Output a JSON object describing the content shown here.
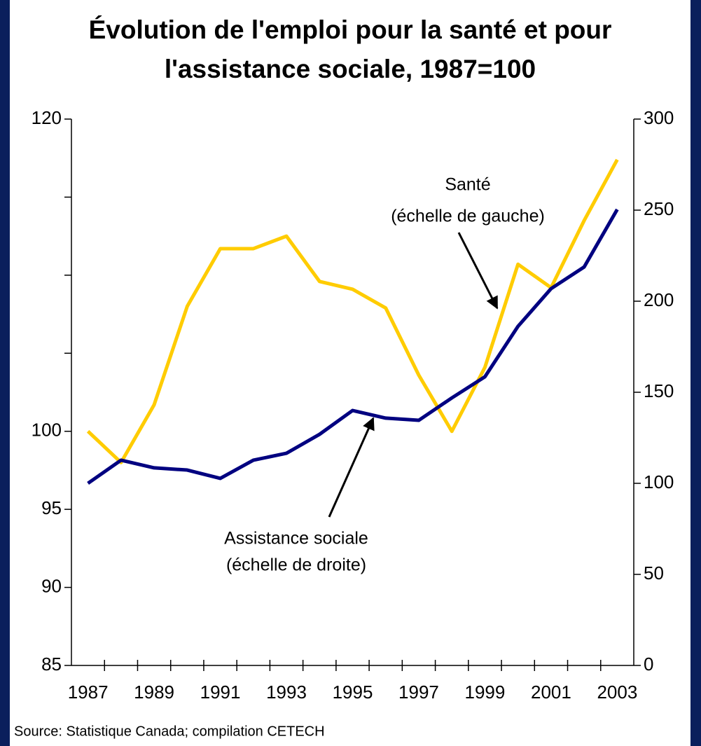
{
  "chart_data": {
    "type": "line",
    "title": [
      "Évolution de l'emploi pour la santé et pour",
      "l'assistance sociale, 1987=100"
    ],
    "source": "Source: Statistique Canada; compilation CETECH",
    "categories": [
      "1987",
      null,
      "1989",
      null,
      "1991",
      null,
      "1993",
      null,
      "1995",
      null,
      "1997",
      null,
      "1999",
      null,
      "2001",
      null,
      "2003"
    ],
    "series": [
      {
        "name": "Santé",
        "annotation": "(échelle de gauche)",
        "color": "#ffcc00",
        "axis": "y",
        "values": [
          100,
          98.0,
          101.7,
          108.0,
          111.7,
          111.7,
          112.5,
          109.6,
          109.1,
          107.9,
          103.6,
          100,
          104.1,
          110.7,
          109.2,
          113.5,
          117.4
        ]
      },
      {
        "name": "Assistance sociale",
        "annotation": "(échelle de droite)",
        "color": "#000080",
        "axis": "y2",
        "values": [
          100,
          112.7,
          108.5,
          107.3,
          102.7,
          112.7,
          116.5,
          126.9,
          140,
          135.8,
          134.6,
          146.9,
          158.5,
          186.2,
          206.9,
          218.8,
          250.4
        ]
      }
    ],
    "ylim": [
      85,
      120
    ],
    "yticks": [
      85,
      90,
      95,
      100,
      {
        "value": 105,
        "label": null
      },
      {
        "value": 110,
        "label": null
      },
      {
        "value": 115,
        "label": null
      },
      120
    ],
    "y2lim": [
      0,
      300
    ],
    "y2ticks": [
      0,
      50,
      100,
      150,
      200,
      250,
      300
    ],
    "grid": false
  }
}
